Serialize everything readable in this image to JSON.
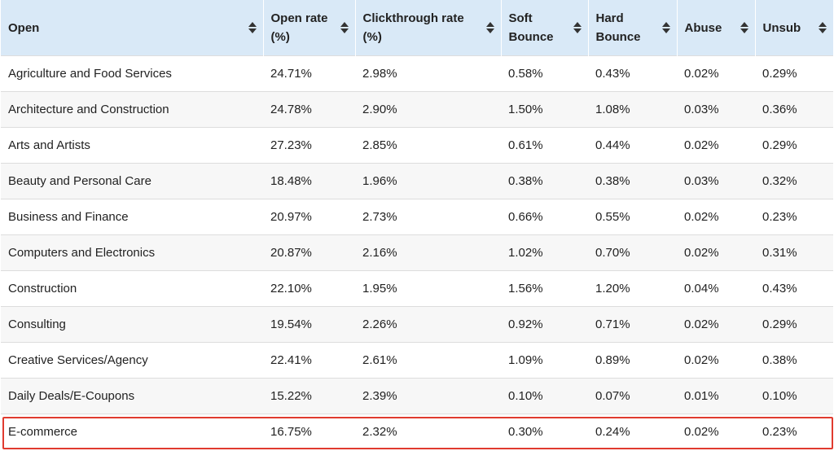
{
  "table": {
    "columns": [
      {
        "key": "open",
        "label_lines": [
          "Open"
        ]
      },
      {
        "key": "open_rate",
        "label_lines": [
          "Open rate",
          "(%)"
        ]
      },
      {
        "key": "ctr",
        "label_lines": [
          "Clickthrough rate",
          "(%)"
        ]
      },
      {
        "key": "soft",
        "label_lines": [
          "Soft",
          "Bounce"
        ]
      },
      {
        "key": "hard",
        "label_lines": [
          "Hard",
          "Bounce"
        ]
      },
      {
        "key": "abuse",
        "label_lines": [
          "Abuse"
        ]
      },
      {
        "key": "unsub",
        "label_lines": [
          "Unsub"
        ]
      }
    ],
    "rows": [
      [
        "Agriculture and Food Services",
        "24.71%",
        "2.98%",
        "0.58%",
        "0.43%",
        "0.02%",
        "0.29%"
      ],
      [
        "Architecture and Construction",
        "24.78%",
        "2.90%",
        "1.50%",
        "1.08%",
        "0.03%",
        "0.36%"
      ],
      [
        "Arts and Artists",
        "27.23%",
        "2.85%",
        "0.61%",
        "0.44%",
        "0.02%",
        "0.29%"
      ],
      [
        "Beauty and Personal Care",
        "18.48%",
        "1.96%",
        "0.38%",
        "0.38%",
        "0.03%",
        "0.32%"
      ],
      [
        "Business and Finance",
        "20.97%",
        "2.73%",
        "0.66%",
        "0.55%",
        "0.02%",
        "0.23%"
      ],
      [
        "Computers and Electronics",
        "20.87%",
        "2.16%",
        "1.02%",
        "0.70%",
        "0.02%",
        "0.31%"
      ],
      [
        "Construction",
        "22.10%",
        "1.95%",
        "1.56%",
        "1.20%",
        "0.04%",
        "0.43%"
      ],
      [
        "Consulting",
        "19.54%",
        "2.26%",
        "0.92%",
        "0.71%",
        "0.02%",
        "0.29%"
      ],
      [
        "Creative Services/Agency",
        "22.41%",
        "2.61%",
        "1.09%",
        "0.89%",
        "0.02%",
        "0.38%"
      ],
      [
        "Daily Deals/E-Coupons",
        "15.22%",
        "2.39%",
        "0.10%",
        "0.07%",
        "0.01%",
        "0.10%"
      ],
      [
        "E-commerce",
        "16.75%",
        "2.32%",
        "0.30%",
        "0.24%",
        "0.02%",
        "0.23%"
      ]
    ],
    "highlighted_row_index": 10,
    "highlight_color": "#e03b2f",
    "header_bg": "#d9e9f7",
    "sort_icon": "sort-updown-icon"
  }
}
